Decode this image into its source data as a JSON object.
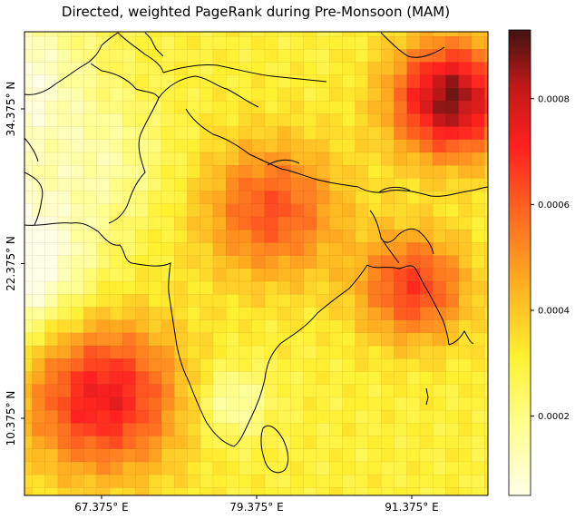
{
  "title": "Directed, weighted PageRank during Pre-Monsoon (MAM)",
  "map": {
    "x_ticks": [
      {
        "value": 67.375,
        "label": "67.375° E"
      },
      {
        "value": 79.375,
        "label": "79.375° E"
      },
      {
        "value": 91.375,
        "label": "91.375° E"
      }
    ],
    "y_ticks": [
      {
        "value": 34.375,
        "label": "34.375° N"
      },
      {
        "value": 22.375,
        "label": "22.375° N"
      },
      {
        "value": 10.375,
        "label": "10.375° N"
      }
    ],
    "colormap": "hot_r",
    "grid_cell_deg": 1.0,
    "hotspots": [
      {
        "lon": 94.4,
        "lat": 35.1,
        "value": 0.00088
      },
      {
        "lon": 67.5,
        "lat": 12.0,
        "value": 0.00074
      },
      {
        "lon": 91.5,
        "lat": 20.5,
        "value": 0.00066
      },
      {
        "lon": 80.5,
        "lat": 26.5,
        "value": 0.00062
      }
    ]
  },
  "colorbar": {
    "min": 5e-05,
    "max": 0.00093,
    "ticks": [
      {
        "value": 0.0002,
        "label": "0.0002"
      },
      {
        "value": 0.0004,
        "label": "0.0004"
      },
      {
        "value": 0.0006,
        "label": "0.0006"
      },
      {
        "value": 0.0008,
        "label": "0.0008"
      }
    ]
  }
}
